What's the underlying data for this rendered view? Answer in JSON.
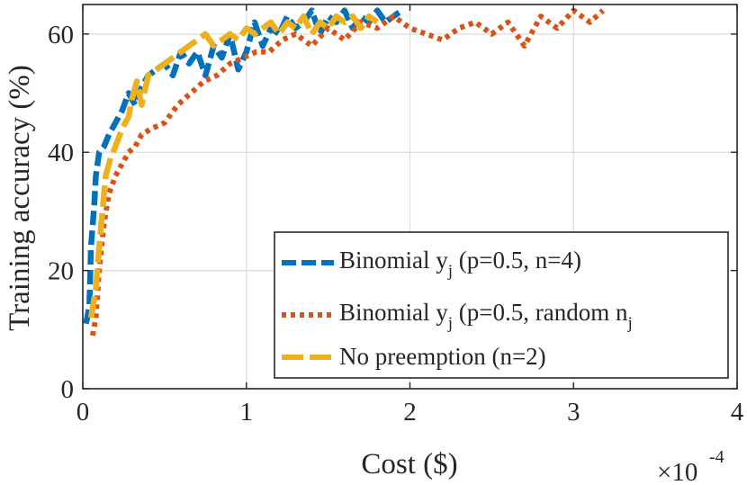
{
  "chart_data": {
    "type": "line",
    "title": "",
    "xlabel": "Cost ($)",
    "ylabel": "Training accuracy (%)",
    "x_multiplier_label": "×10",
    "x_multiplier_exponent": "-4",
    "xlim": [
      0,
      4
    ],
    "ylim": [
      0,
      65
    ],
    "xticks": [
      0,
      1,
      2,
      3,
      4
    ],
    "xtick_labels": [
      "0",
      "1",
      "2",
      "3",
      "4"
    ],
    "yticks": [
      0,
      20,
      40,
      60
    ],
    "ytick_labels": [
      "0",
      "20",
      "40",
      "60"
    ],
    "grid": true,
    "legend_position": "bottom-right",
    "series": [
      {
        "name": "Binomial y_j (p=0.5, n=4)",
        "legend_main": "Binomial y",
        "legend_sub": "j",
        "legend_rest": " (p=0.5, n=4)",
        "legend_sub2": "",
        "color": "#0072BD",
        "style": "dash",
        "x": [
          0.02,
          0.04,
          0.05,
          0.07,
          0.08,
          0.1,
          0.13,
          0.16,
          0.2,
          0.24,
          0.28,
          0.32,
          0.36,
          0.4,
          0.45,
          0.5,
          0.55,
          0.6,
          0.65,
          0.7,
          0.75,
          0.8,
          0.85,
          0.9,
          0.95,
          1.0,
          1.05,
          1.1,
          1.15,
          1.2,
          1.25,
          1.3,
          1.35,
          1.4,
          1.45,
          1.5,
          1.55,
          1.6,
          1.65,
          1.7,
          1.75,
          1.8,
          1.85,
          1.9,
          1.95
        ],
        "values": [
          11,
          14,
          24,
          31,
          36,
          40,
          41,
          43,
          45,
          47,
          50,
          48,
          51,
          53,
          54,
          55,
          53,
          57,
          55,
          57,
          53,
          58,
          56,
          60,
          54,
          57,
          62,
          58,
          61,
          60,
          63,
          61,
          62,
          64,
          60,
          63,
          62,
          64,
          61,
          63,
          62,
          64,
          62,
          63,
          64
        ]
      },
      {
        "name": "Binomial y_j (p=0.5, random n_j)",
        "legend_main": "Binomial y",
        "legend_sub": "j",
        "legend_rest": " (p=0.5, random n",
        "legend_sub2": "j",
        "color": "#D95319",
        "style": "dot",
        "x": [
          0.06,
          0.08,
          0.1,
          0.13,
          0.16,
          0.2,
          0.24,
          0.28,
          0.32,
          0.36,
          0.42,
          0.5,
          0.58,
          0.66,
          0.74,
          0.82,
          0.9,
          0.98,
          1.06,
          1.14,
          1.22,
          1.3,
          1.4,
          1.5,
          1.6,
          1.7,
          1.8,
          1.9,
          2.0,
          2.1,
          2.2,
          2.3,
          2.4,
          2.5,
          2.6,
          2.7,
          2.8,
          2.9,
          3.0,
          3.1,
          3.18
        ],
        "values": [
          9,
          12,
          20,
          28,
          33,
          36,
          38,
          40,
          41,
          43,
          44,
          45,
          48,
          50,
          52,
          53,
          55,
          56,
          57,
          57,
          59,
          60,
          58,
          61,
          59,
          62,
          61,
          63,
          61,
          60,
          59,
          61,
          62,
          60,
          62,
          58,
          63,
          61,
          64,
          62,
          64
        ]
      },
      {
        "name": "No preemption (n=2)",
        "legend_main": "No preemption (n=2)",
        "legend_sub": "",
        "legend_rest": "",
        "legend_sub2": "",
        "color": "#EDB120",
        "style": "longdash",
        "x": [
          0.05,
          0.08,
          0.1,
          0.12,
          0.14,
          0.17,
          0.2,
          0.24,
          0.28,
          0.3,
          0.33,
          0.36,
          0.4,
          0.45,
          0.5,
          0.55,
          0.6,
          0.65,
          0.7,
          0.75,
          0.8,
          0.85,
          0.9,
          0.95,
          1.0,
          1.05,
          1.1,
          1.15,
          1.2,
          1.25,
          1.3,
          1.35,
          1.4,
          1.45,
          1.5,
          1.55,
          1.6,
          1.65,
          1.7,
          1.75,
          1.8
        ],
        "values": [
          12,
          17,
          24,
          30,
          36,
          39,
          41,
          44,
          46,
          49,
          52,
          48,
          53,
          54,
          55,
          56,
          57,
          58,
          59,
          60,
          58,
          59,
          60,
          59,
          61,
          60,
          61,
          62,
          60,
          62,
          61,
          63,
          60,
          62,
          61,
          63,
          62,
          63,
          61,
          63,
          62
        ]
      }
    ]
  }
}
